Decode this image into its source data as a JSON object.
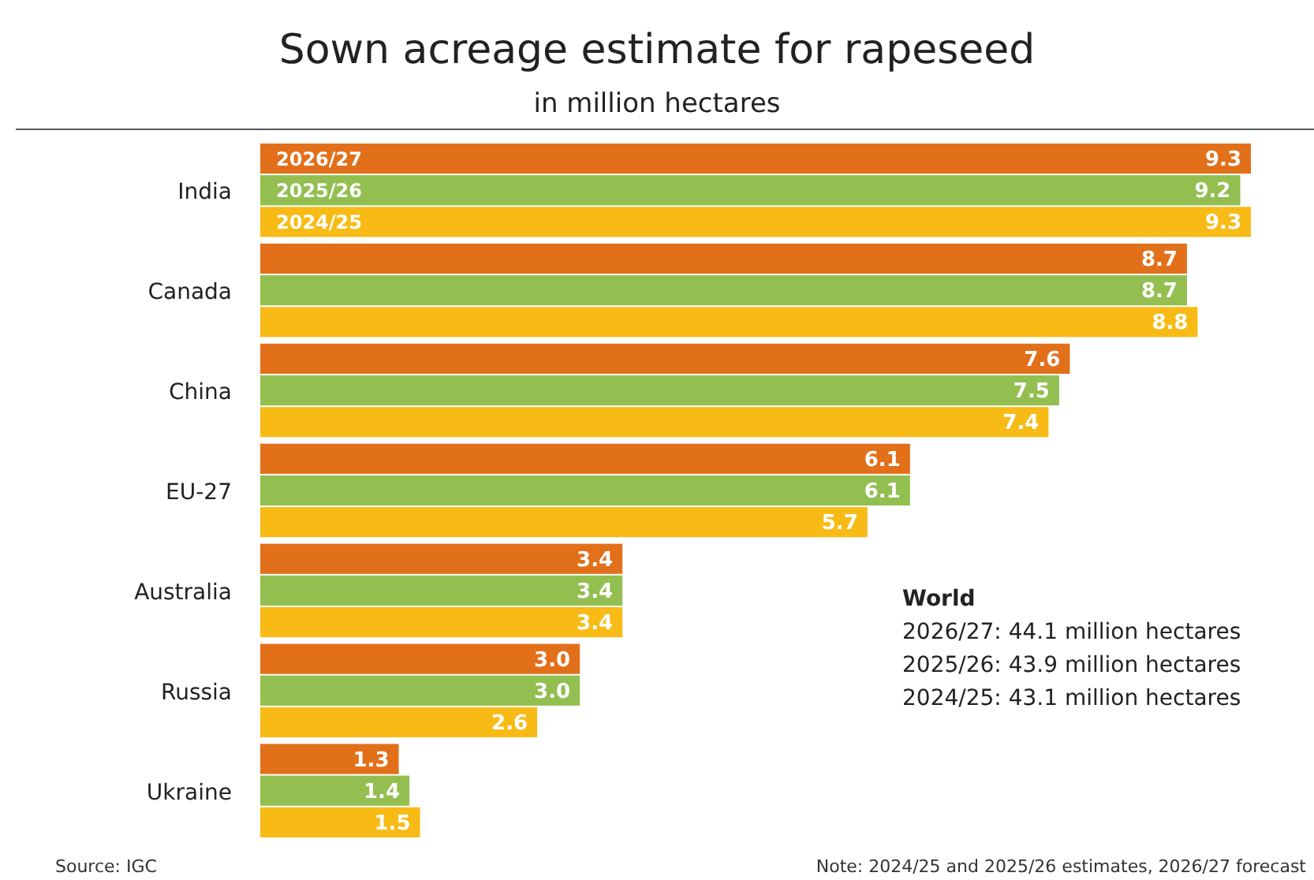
{
  "chart_data": {
    "type": "bar",
    "orientation": "horizontal",
    "title": "Sown acreage estimate for rapeseed",
    "subtitle": "in million hectares",
    "categories": [
      "India",
      "Canada",
      "China",
      "EU-27",
      "Australia",
      "Russia",
      "Ukraine"
    ],
    "series": [
      {
        "name": "2026/27",
        "color": "#e2701b",
        "values": [
          9.3,
          8.7,
          7.6,
          6.1,
          3.4,
          3.0,
          1.3
        ],
        "value_labels": [
          "9.3",
          "8.7",
          "7.6",
          "6.1",
          "3.4",
          "3.0",
          "1.3"
        ]
      },
      {
        "name": "2025/26",
        "color": "#92bf4f",
        "values": [
          9.2,
          8.7,
          7.5,
          6.1,
          3.4,
          3.0,
          1.4
        ],
        "value_labels": [
          "9.2",
          "8.7",
          "7.5",
          "6.1",
          "3.4",
          "3.0",
          "1.4"
        ]
      },
      {
        "name": "2024/25",
        "color": "#f8bb16",
        "values": [
          9.3,
          8.8,
          7.4,
          5.7,
          3.4,
          2.6,
          1.5
        ],
        "value_labels": [
          "9.3",
          "8.8",
          "7.4",
          "5.7",
          "3.4",
          "2.6",
          "1.5"
        ]
      }
    ],
    "annotations": [
      "World",
      "2026/27: 44.1 million hectares",
      "2025/26: 43.9 million hectares",
      "2024/25: 43.1 million hectares",
      "Source: IGC",
      "Note: 2024/25 and 2025/26 estimates, 2026/27 forecast"
    ]
  }
}
